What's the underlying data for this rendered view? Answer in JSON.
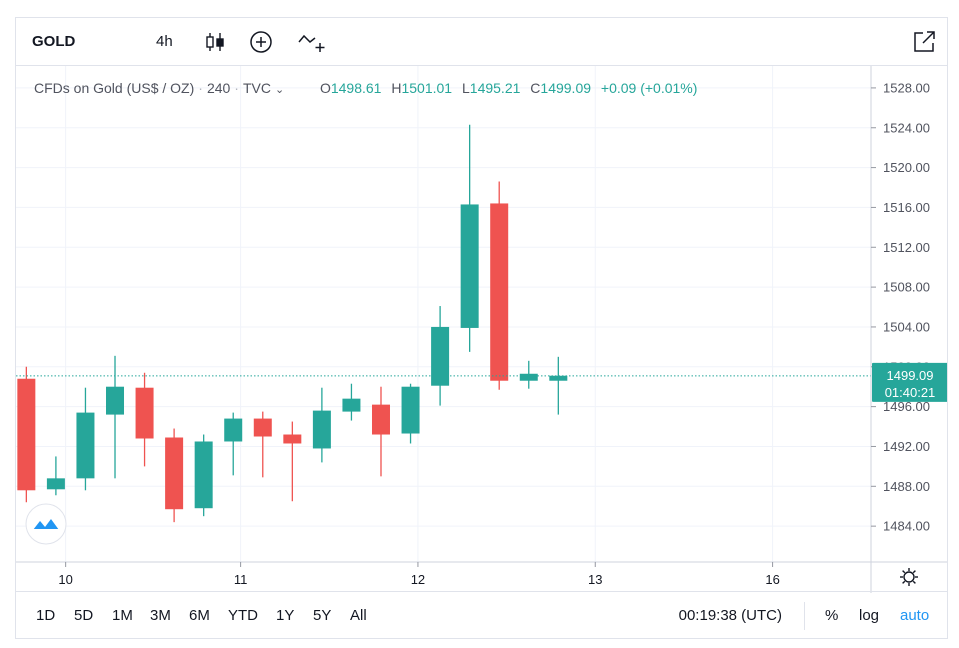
{
  "toolbar": {
    "symbol": "GOLD",
    "interval": "4h",
    "icons": [
      "candles-icon",
      "add-indicator-icon",
      "compare-icon",
      "fullscreen-icon"
    ]
  },
  "legend": {
    "name": "CFDs on Gold (US$ / OZ)",
    "interval": "240",
    "source": "TVC",
    "open_label": "O",
    "open": "1498.61",
    "high_label": "H",
    "high": "1501.01",
    "low_label": "L",
    "low": "1495.21",
    "close_label": "C",
    "close": "1499.09",
    "change": "+0.09 (+0.01%)"
  },
  "price_tag": {
    "price": "1499.09",
    "countdown": "01:40:21"
  },
  "bottom": {
    "ranges": [
      "1D",
      "5D",
      "1M",
      "3M",
      "6M",
      "YTD",
      "1Y",
      "5Y",
      "All"
    ],
    "clock": "00:19:38 (UTC)",
    "percent": "%",
    "log": "log",
    "auto": "auto"
  },
  "colors": {
    "up": "#26a69a",
    "down": "#ef5350",
    "grid": "#f0f3fa"
  },
  "chart_data": {
    "type": "candlestick",
    "y_ticks": [
      1484,
      1488,
      1492,
      1496,
      1500,
      1504,
      1508,
      1512,
      1516,
      1520,
      1524,
      1528
    ],
    "y_tick_labels": [
      "1484.00",
      "1488.00",
      "1492.00",
      "1496.00",
      "1500.00",
      "1504.00",
      "1508.00",
      "1512.00",
      "1516.00",
      "1520.00",
      "1524.00",
      "1528.00"
    ],
    "ylim": [
      1480.4,
      1530.2
    ],
    "x_ticks": [
      {
        "label": "10",
        "index": 1.33
      },
      {
        "label": "11",
        "index": 7.25
      },
      {
        "label": "12",
        "index": 13.25
      },
      {
        "label": "13",
        "index": 19.25
      },
      {
        "label": "16",
        "index": 25.25
      }
    ],
    "xlim": [
      -0.35,
      28.58
    ],
    "last_price": 1499.09,
    "candles": [
      {
        "o": 1498.8,
        "h": 1500.0,
        "l": 1486.4,
        "c": 1487.6
      },
      {
        "o": 1487.7,
        "h": 1491.0,
        "l": 1487.1,
        "c": 1488.8
      },
      {
        "o": 1488.8,
        "h": 1497.9,
        "l": 1487.6,
        "c": 1495.4
      },
      {
        "o": 1495.2,
        "h": 1501.1,
        "l": 1488.8,
        "c": 1498.0
      },
      {
        "o": 1497.9,
        "h": 1499.4,
        "l": 1490.0,
        "c": 1492.8
      },
      {
        "o": 1492.9,
        "h": 1493.8,
        "l": 1484.4,
        "c": 1485.7
      },
      {
        "o": 1485.8,
        "h": 1493.2,
        "l": 1485.0,
        "c": 1492.5
      },
      {
        "o": 1492.5,
        "h": 1495.4,
        "l": 1489.1,
        "c": 1494.8
      },
      {
        "o": 1494.8,
        "h": 1495.5,
        "l": 1488.9,
        "c": 1493.0
      },
      {
        "o": 1493.2,
        "h": 1494.5,
        "l": 1486.5,
        "c": 1492.3
      },
      {
        "o": 1491.8,
        "h": 1497.9,
        "l": 1490.4,
        "c": 1495.6
      },
      {
        "o": 1495.5,
        "h": 1498.3,
        "l": 1494.6,
        "c": 1496.8
      },
      {
        "o": 1496.2,
        "h": 1498.0,
        "l": 1489.0,
        "c": 1493.2
      },
      {
        "o": 1493.3,
        "h": 1498.3,
        "l": 1492.3,
        "c": 1498.0
      },
      {
        "o": 1498.1,
        "h": 1506.1,
        "l": 1496.1,
        "c": 1504.0
      },
      {
        "o": 1503.9,
        "h": 1524.3,
        "l": 1501.5,
        "c": 1516.3
      },
      {
        "o": 1516.4,
        "h": 1518.6,
        "l": 1497.7,
        "c": 1498.6
      },
      {
        "o": 1498.6,
        "h": 1500.6,
        "l": 1497.8,
        "c": 1499.3
      },
      {
        "o": 1498.6,
        "h": 1501.0,
        "l": 1495.2,
        "c": 1499.1
      }
    ]
  }
}
